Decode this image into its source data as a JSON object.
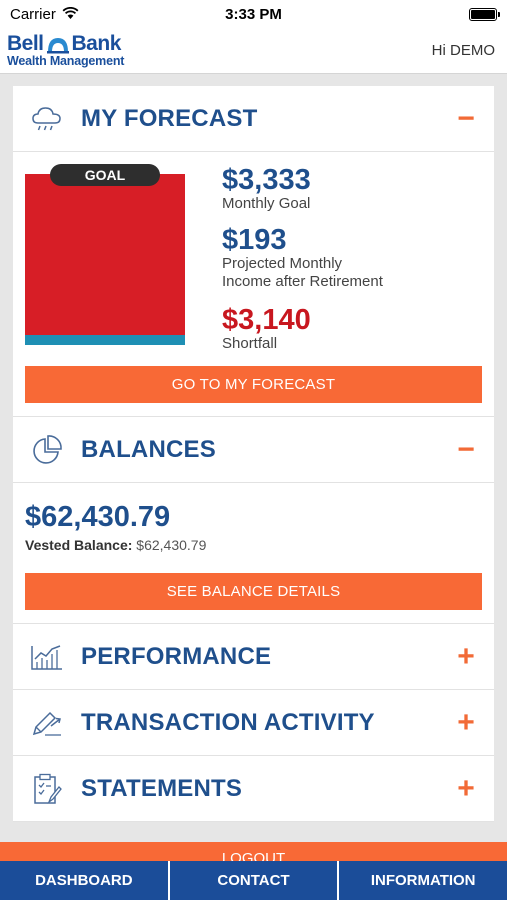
{
  "status_bar": {
    "carrier": "Carrier",
    "time": "3:33 PM"
  },
  "header": {
    "logo_line1_left": "Bell",
    "logo_line1_right": "Bank",
    "logo_line2": "Wealth Management",
    "greeting": "Hi DEMO"
  },
  "forecast": {
    "title": "MY FORECAST",
    "toggle": "−",
    "goal_label": "GOAL",
    "monthly_goal_value": "$3,333",
    "monthly_goal_label": "Monthly Goal",
    "projected_value": "$193",
    "projected_label_line1": "Projected Monthly",
    "projected_label_line2": "Income after Retirement",
    "shortfall_value": "$3,140",
    "shortfall_label": "Shortfall",
    "button": "GO TO MY FORECAST",
    "colors": {
      "goal": "#d71e26",
      "income": "#1e8fb4"
    }
  },
  "balances": {
    "title": "BALANCES",
    "toggle": "−",
    "total": "$62,430.79",
    "vested_label": "Vested Balance:",
    "vested_value": "$62,430.79",
    "button": "SEE BALANCE DETAILS"
  },
  "sections": [
    {
      "title": "PERFORMANCE",
      "toggle": "+"
    },
    {
      "title": "TRANSACTION ACTIVITY",
      "toggle": "+"
    },
    {
      "title": "STATEMENTS",
      "toggle": "+"
    }
  ],
  "logout": "LOGOUT",
  "tabs": [
    "DASHBOARD",
    "CONTACT",
    "INFORMATION"
  ],
  "colors": {
    "accent": "#f86936",
    "brand": "#1f4f8c",
    "tabbar": "#1b4d99"
  }
}
